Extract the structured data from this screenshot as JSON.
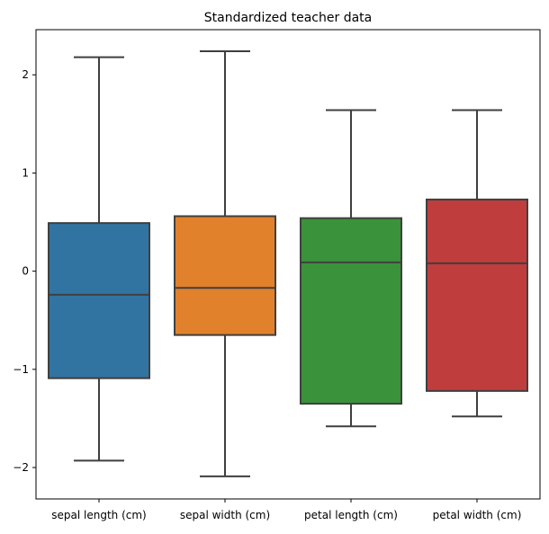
{
  "chart_data": {
    "type": "box",
    "title": "Standardized teacher data",
    "xlabel": "",
    "ylabel": "",
    "ylim": [
      -2.32,
      2.46
    ],
    "y_ticks": [
      2,
      1,
      0,
      -1,
      -2
    ],
    "y_tick_labels": [
      "2",
      "1",
      "0",
      "−1",
      "−2"
    ],
    "categories": [
      "sepal length (cm)",
      "sepal width (cm)",
      "petal length (cm)",
      "petal width (cm)"
    ],
    "boxes": [
      {
        "whisker_low": -1.93,
        "q1": -1.09,
        "median": -0.24,
        "q3": 0.49,
        "whisker_high": 2.18,
        "color": "#3274a1"
      },
      {
        "whisker_low": -2.09,
        "q1": -0.65,
        "median": -0.17,
        "q3": 0.56,
        "whisker_high": 2.24,
        "color": "#e1812c"
      },
      {
        "whisker_low": -1.58,
        "q1": -1.35,
        "median": 0.09,
        "q3": 0.54,
        "whisker_high": 1.64,
        "color": "#3a923a"
      },
      {
        "whisker_low": -1.48,
        "q1": -1.22,
        "median": 0.08,
        "q3": 0.73,
        "whisker_high": 1.64,
        "color": "#c03d3e"
      }
    ],
    "grid": false,
    "legend": "none",
    "line_color": "#3f3f3f"
  }
}
